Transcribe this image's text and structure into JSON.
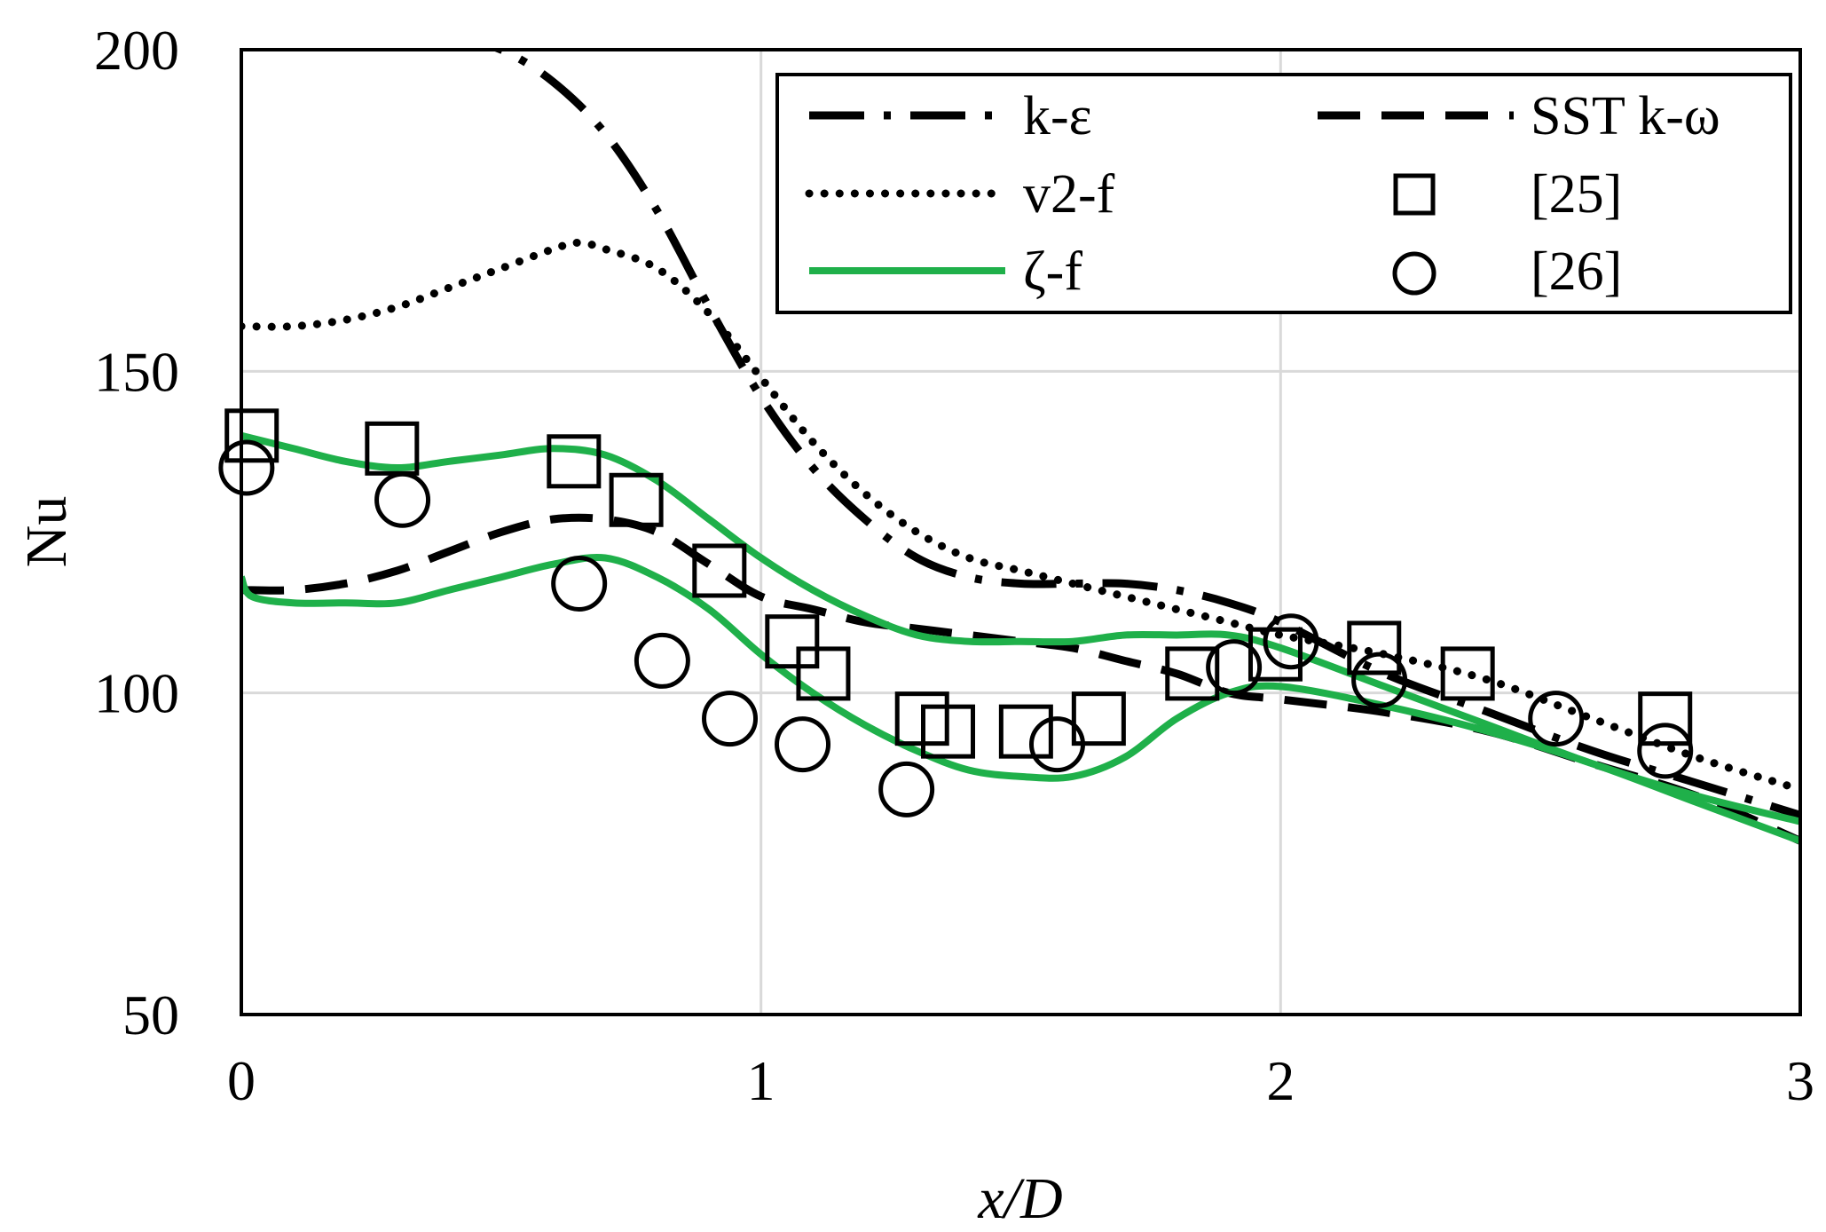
{
  "chart_data": {
    "type": "line",
    "title": "",
    "xlabel": "x/D",
    "ylabel": "Nu",
    "xlim": [
      0,
      3
    ],
    "ylim": [
      50,
      200
    ],
    "xticks": [
      0,
      1,
      2,
      3
    ],
    "yticks": [
      50,
      100,
      150,
      200
    ],
    "grid": true,
    "legend_position": "top-right",
    "colors": {
      "black": "#000000",
      "green": "#1fb04a",
      "grid": "#d9d9d9"
    },
    "series": [
      {
        "name": "k-ε",
        "style": "long-dash-dot",
        "color": "#000000",
        "x": [
          0.4,
          0.5,
          0.6,
          0.7,
          0.8,
          0.9,
          1.0,
          1.1,
          1.2,
          1.3,
          1.4,
          1.5,
          1.6,
          1.7,
          1.8,
          1.9,
          2.0,
          2.2,
          2.4,
          2.6,
          2.8,
          3.0
        ],
        "y": [
          202,
          200,
          195,
          187,
          175,
          160,
          146,
          135,
          127,
          121,
          118,
          117,
          117,
          117,
          116,
          114,
          111,
          103,
          97,
          91,
          86,
          81
        ]
      },
      {
        "name": "SST k-ω",
        "style": "dashed",
        "color": "#000000",
        "x": [
          0.0,
          0.1,
          0.2,
          0.3,
          0.4,
          0.5,
          0.6,
          0.7,
          0.8,
          0.9,
          1.0,
          1.1,
          1.2,
          1.3,
          1.4,
          1.5,
          1.6,
          1.7,
          1.8,
          1.9,
          2.0,
          2.2,
          2.4,
          2.6,
          2.8,
          3.0
        ],
        "y": [
          116,
          116,
          117,
          119,
          122,
          125,
          127,
          127,
          125,
          120,
          115,
          113,
          111,
          110,
          109,
          108,
          107,
          105,
          103,
          100,
          99,
          97,
          94,
          89,
          84,
          77
        ]
      },
      {
        "name": "v2-f",
        "style": "dotted",
        "color": "#000000",
        "x": [
          0.0,
          0.1,
          0.2,
          0.3,
          0.4,
          0.5,
          0.6,
          0.65,
          0.7,
          0.8,
          0.9,
          1.0,
          1.1,
          1.2,
          1.3,
          1.4,
          1.5,
          1.6,
          1.7,
          1.8,
          1.9,
          2.0,
          2.2,
          2.4,
          2.6,
          2.8,
          3.0
        ],
        "y": [
          157,
          157,
          158,
          160,
          163,
          166,
          169,
          170,
          169,
          166,
          159,
          149,
          139,
          131,
          125,
          121,
          119,
          117,
          115,
          113,
          111,
          109,
          106,
          102,
          96,
          90,
          85
        ]
      },
      {
        "name": "ζ-f",
        "style": "solid",
        "color": "#1fb04a",
        "x": [
          0.0,
          0.1,
          0.2,
          0.3,
          0.4,
          0.5,
          0.6,
          0.7,
          0.8,
          0.9,
          1.0,
          1.1,
          1.2,
          1.3,
          1.4,
          1.5,
          1.6,
          1.7,
          1.8,
          1.9,
          2.0,
          2.2,
          2.4,
          2.6,
          2.8,
          3.0
        ],
        "y": [
          140,
          138,
          136,
          135,
          136,
          137,
          138,
          137,
          133,
          127,
          121,
          116,
          112,
          109,
          108,
          108,
          108,
          109,
          109,
          109,
          107,
          101,
          95,
          89,
          84,
          80
        ]
      },
      {
        "name": "",
        "style": "solid",
        "color": "#1fb04a",
        "x": [
          0.0,
          0.02,
          0.1,
          0.2,
          0.3,
          0.4,
          0.5,
          0.6,
          0.7,
          0.8,
          0.9,
          1.0,
          1.1,
          1.2,
          1.3,
          1.4,
          1.5,
          1.6,
          1.7,
          1.8,
          1.9,
          2.0,
          2.2,
          2.4,
          2.6,
          2.8,
          3.0
        ],
        "y": [
          118,
          115,
          114,
          114,
          114,
          116,
          118,
          120,
          121,
          118,
          113,
          106,
          100,
          95,
          91,
          88,
          87,
          87,
          90,
          96,
          100,
          101,
          98,
          94,
          89,
          83,
          77
        ]
      }
    ],
    "markers": [
      {
        "name": "[25]",
        "shape": "square",
        "x": [
          0.02,
          0.29,
          0.64,
          0.76,
          0.92,
          1.06,
          1.12,
          1.31,
          1.36,
          1.51,
          1.65,
          1.83,
          1.99,
          2.18,
          2.36,
          2.74
        ],
        "y": [
          140,
          138,
          136,
          130,
          119,
          108,
          103,
          96,
          94,
          94,
          96,
          103,
          106,
          107,
          103,
          96
        ]
      },
      {
        "name": "[26]",
        "shape": "circle",
        "x": [
          0.01,
          0.31,
          0.65,
          0.81,
          0.94,
          1.08,
          1.28,
          1.57,
          1.91,
          2.02,
          2.19,
          2.53,
          2.74
        ],
        "y": [
          135,
          130,
          117,
          105,
          96,
          92,
          85,
          92,
          104,
          108,
          102,
          96,
          91
        ]
      }
    ]
  }
}
